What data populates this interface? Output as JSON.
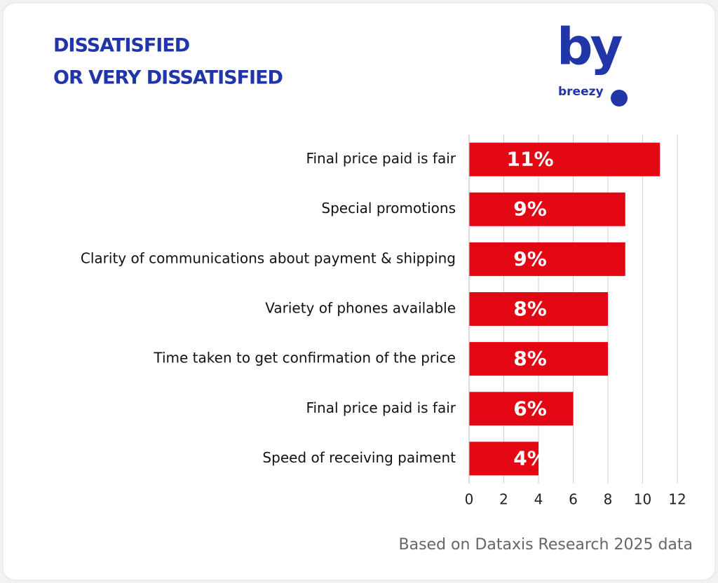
{
  "chart_data": {
    "type": "hbar",
    "title": [
      "DISSATISFIED",
      "OR VERY DISSATISFIED"
    ],
    "logo": {
      "mark": "by",
      "name": "breezy"
    },
    "categories": [
      "Final price paid is fair",
      "Special promotions",
      "Clarity of communications about payment & shipping",
      "Variety of phones available",
      "Time taken to get confirmation of the price",
      "Final price paid is fair",
      "Speed of receiving paiment"
    ],
    "values": [
      11,
      9,
      9,
      8,
      8,
      6,
      4
    ],
    "value_labels": [
      "11%",
      "9%",
      "9%",
      "8%",
      "8%",
      "6%",
      "4%"
    ],
    "color": "#e30613",
    "xlim": [
      0,
      12
    ],
    "xticks": [
      0,
      2,
      4,
      6,
      8,
      10,
      12
    ],
    "grid": true,
    "source": "Based on Dataxis Research 2025 data"
  }
}
